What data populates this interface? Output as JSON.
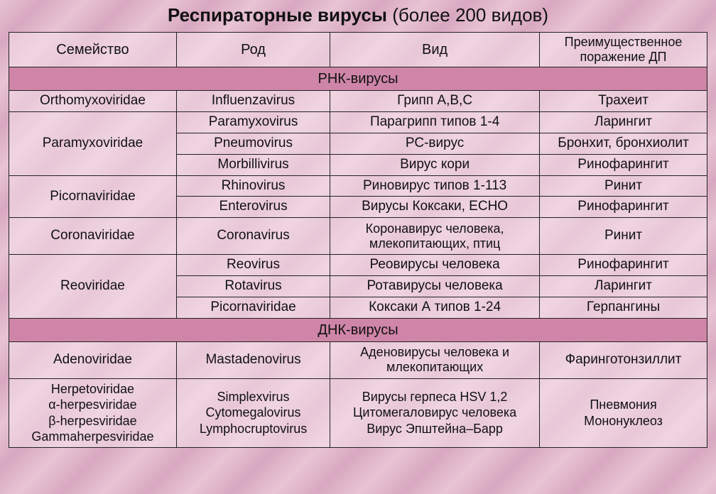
{
  "title_bold": "Респираторные вирусы",
  "title_rest": " (более 200 видов)",
  "columns": [
    "Семейство",
    "Род",
    "Вид",
    "Преимущественное поражение ДП"
  ],
  "section1": "РНК-вирусы",
  "section2": "ДНК-вирусы",
  "rows": {
    "r1": {
      "fam": "Orthomyxoviridae",
      "genus": "Influenzavirus",
      "species": "Грипп A,B,C",
      "lesion": "Трахеит"
    },
    "r2a": {
      "fam": "Paramyxoviridae",
      "genus": "Paramyxovirus",
      "species": "Парагрипп типов 1-4",
      "lesion": "Ларингит"
    },
    "r2b": {
      "genus": "Pneumovirus",
      "species": "РС-вирус",
      "lesion": "Бронхит, бронхиолит"
    },
    "r2c": {
      "genus": "Morbillivirus",
      "species": "Вирус кори",
      "lesion": "Ринофарингит"
    },
    "r3a": {
      "fam": "Picornaviridae",
      "genus": "Rhinovirus",
      "species": "Риновирус типов 1-113",
      "lesion": "Ринит"
    },
    "r3b": {
      "genus": "Enterovirus",
      "species": "Вирусы Коксаки, ECHO",
      "lesion": "Ринофарингит"
    },
    "r4": {
      "fam": "Coronaviridae",
      "genus": "Coronavirus",
      "species": "Коронавирус человека, млекопитающих, птиц",
      "lesion": "Ринит"
    },
    "r5a": {
      "fam": "Reoviridae",
      "genus": "Reovirus",
      "species": "Реовирусы человека",
      "lesion": "Ринофарингит"
    },
    "r5b": {
      "genus": "Rotavirus",
      "species": "Ротавирусы человека",
      "lesion": "Ларингит"
    },
    "r5c": {
      "genus": "Picornaviridae",
      "species": "Коксаки А типов 1-24",
      "lesion": "Герпангины"
    },
    "r6": {
      "fam": "Adenoviridae",
      "genus": "Mastadenovirus",
      "species": "Аденовирусы человека и млекопитающих",
      "lesion": "Фаринготонзиллит"
    },
    "r7": {
      "fam_l1": "Herpetoviridae",
      "fam_l2": "α-herpesviridae",
      "fam_l3": "β-herpesviridae",
      "fam_l4": "Gammaherpesviridae",
      "genus_l1": "Simplexvirus",
      "genus_l2": "Cytomegalovirus",
      "genus_l3": "Lymphocruptovirus",
      "species_l1": "Вирусы герпеса HSV 1,2",
      "species_l2": "Цитомегаловирус человека",
      "species_l3": "Вирус Эпштейна–Барр",
      "lesion_l1": "Пневмония",
      "lesion_l2": "Мононуклеоз"
    }
  },
  "colors": {
    "section_bg": "#cf85a8",
    "cell_bg": "rgba(245,225,235,0.55)",
    "border": "#222222",
    "text": "#111111"
  }
}
